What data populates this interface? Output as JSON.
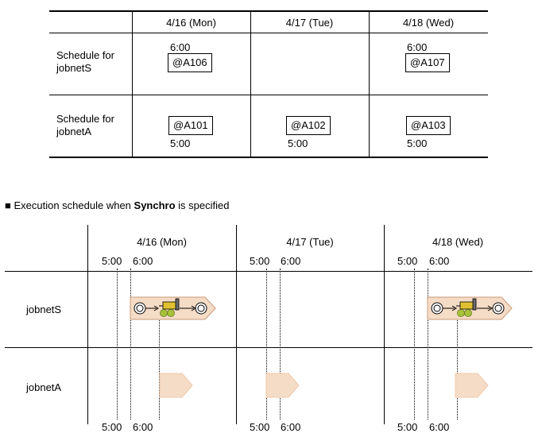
{
  "top_table": {
    "headers": [
      "4/16 (Mon)",
      "4/17 (Tue)",
      "4/18 (Wed)"
    ],
    "rows": [
      {
        "label_lines": [
          "Schedule for",
          "jobnetS"
        ],
        "cells": [
          {
            "time_above": "6:00",
            "code": "@A106"
          },
          null,
          {
            "time_above": "6:00",
            "code": "@A107"
          }
        ]
      },
      {
        "label_lines": [
          "Schedule for",
          "jobnetA"
        ],
        "cells": [
          {
            "code": "@A101",
            "time_below": "5:00"
          },
          {
            "code": "@A102",
            "time_below": "5:00"
          },
          {
            "code": "@A103",
            "time_below": "5:00"
          }
        ]
      }
    ]
  },
  "section": {
    "bullet": "■",
    "text_before": "Execution schedule when ",
    "text_bold": "Synchro",
    "text_after": " is specified"
  },
  "bottom": {
    "days": [
      "4/16 (Mon)",
      "4/17 (Tue)",
      "4/18 (Wed)"
    ],
    "time_5": "5:00",
    "time_6": "6:00",
    "rows": [
      "jobnetS",
      "jobnetA"
    ]
  },
  "colors": {
    "bar_fill": "#f5dcc6",
    "bar_stroke": "#c89a78",
    "ball": "#a8c23a",
    "machine": "#e0c030"
  }
}
